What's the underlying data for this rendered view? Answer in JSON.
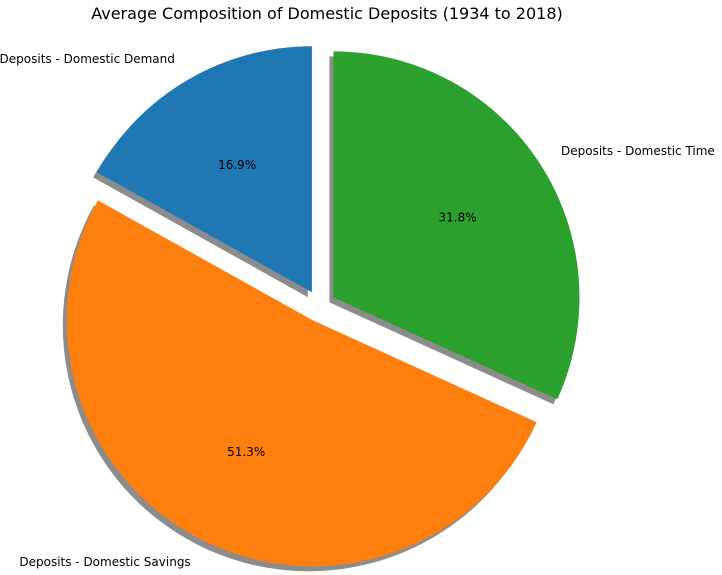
{
  "chart_data": {
    "type": "pie",
    "title": "Average Composition of Domestic Deposits (1934 to 2018)",
    "shadow": true,
    "start_angle_deg": 90,
    "exploded": true,
    "slices": [
      {
        "label": "Deposits - Domestic Demand",
        "value": 16.9,
        "pct_label": "16.9%",
        "color": "#1f77b4"
      },
      {
        "label": "Deposits - Domestic Savings",
        "value": 51.3,
        "pct_label": "51.3%",
        "color": "#ff7f0e"
      },
      {
        "label": "Deposits - Domestic Time",
        "value": 31.8,
        "pct_label": "31.8%",
        "color": "#2ca02c"
      }
    ]
  }
}
